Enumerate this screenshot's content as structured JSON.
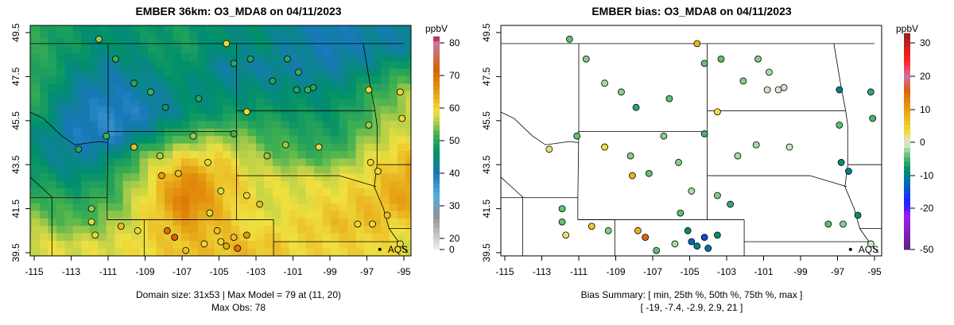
{
  "left": {
    "title": "EMBER 36km: O3_MDA8 on 04/11/2023",
    "footer1": "Domain size: 31x53 | Max Model = 79 at (11, 20)",
    "footer2": "Max Obs: 78",
    "units": "ppbV",
    "colorbar_ticks": [
      "80",
      "70",
      "60",
      "50",
      "40",
      "30",
      "20",
      "0"
    ]
  },
  "right": {
    "title": "EMBER bias: O3_MDA8 on 04/11/2023",
    "footer1": "Bias Summary: [ min, 25th %, 50th %, 75th %, max ]",
    "footer2": "[ -19,  -7.4,  -2.9,  2.9,  21 ]",
    "units": "ppbV",
    "colorbar_ticks": [
      "30",
      "20",
      "10",
      "0",
      "-10",
      "-20",
      "-50"
    ]
  },
  "marker_label": "AQS",
  "chart_data": {
    "type": "heatmap",
    "xlabel": "Longitude",
    "ylabel": "Latitude",
    "x_ticks": [
      "-115",
      "-113",
      "-111",
      "-109",
      "-107",
      "-105",
      "-103",
      "-101",
      "-99",
      "-97",
      "-95"
    ],
    "y_ticks": [
      "49.5",
      "47.5",
      "45.5",
      "43.5",
      "41.5",
      "39.5"
    ],
    "xlim": [
      -115.5,
      -94.7
    ],
    "ylim": [
      39.35,
      49.8
    ],
    "model_grid_lons": [
      -115,
      -113,
      -111,
      -109,
      -107,
      -105,
      -103,
      -101,
      -99,
      -97,
      -95
    ],
    "model_grid_lats": [
      49,
      48,
      47,
      46,
      45,
      44,
      43,
      42,
      41,
      40
    ],
    "model_grid": [
      [
        50,
        47,
        45,
        47,
        48,
        45,
        45,
        42,
        40,
        42,
        42
      ],
      [
        50,
        45,
        42,
        45,
        47,
        42,
        42,
        42,
        42,
        45,
        50
      ],
      [
        50,
        42,
        40,
        42,
        45,
        45,
        45,
        45,
        45,
        50,
        55
      ],
      [
        48,
        40,
        38,
        40,
        45,
        47,
        48,
        47,
        47,
        52,
        57
      ],
      [
        45,
        40,
        38,
        45,
        52,
        55,
        52,
        50,
        48,
        55,
        58
      ],
      [
        45,
        42,
        45,
        55,
        60,
        60,
        55,
        52,
        52,
        58,
        62
      ],
      [
        48,
        45,
        50,
        58,
        68,
        62,
        58,
        58,
        58,
        60,
        65
      ],
      [
        52,
        50,
        52,
        60,
        70,
        62,
        58,
        58,
        60,
        62,
        65
      ],
      [
        55,
        52,
        55,
        60,
        65,
        62,
        58,
        60,
        62,
        62,
        60
      ],
      [
        58,
        58,
        58,
        60,
        62,
        62,
        62,
        60,
        60,
        60,
        58
      ]
    ],
    "stations": [
      [
        -111.5,
        49.2,
        55,
        -4
      ],
      [
        -110.6,
        48.3,
        52,
        -3
      ],
      [
        -109.6,
        47.2,
        50,
        -2
      ],
      [
        -108.7,
        46.8,
        52,
        -3
      ],
      [
        -107.9,
        46.1,
        48,
        -6
      ],
      [
        -106.1,
        46.5,
        50,
        -4
      ],
      [
        -104.6,
        49.0,
        60,
        8
      ],
      [
        -104.2,
        48.1,
        50,
        -4
      ],
      [
        -103.3,
        48.3,
        50,
        -4
      ],
      [
        -102.1,
        47.3,
        50,
        -3
      ],
      [
        -101.3,
        48.3,
        50,
        -3
      ],
      [
        -100.7,
        47.7,
        52,
        -2
      ],
      [
        -100.8,
        46.9,
        50,
        -1
      ],
      [
        -100.2,
        46.9,
        52,
        0
      ],
      [
        -99.9,
        47.0,
        50,
        -1
      ],
      [
        -103.5,
        45.9,
        60,
        3
      ],
      [
        -112.6,
        44.2,
        50,
        2
      ],
      [
        -111.1,
        44.8,
        52,
        -4
      ],
      [
        -109.6,
        44.3,
        62,
        3
      ],
      [
        -108.2,
        43.9,
        56,
        -3
      ],
      [
        -106.4,
        44.8,
        55,
        -3
      ],
      [
        -104.2,
        44.9,
        52,
        -5
      ],
      [
        -102.4,
        43.9,
        55,
        -2
      ],
      [
        -101.4,
        44.4,
        55,
        -2
      ],
      [
        -99.6,
        44.3,
        58,
        -1
      ],
      [
        -96.9,
        46.9,
        60,
        -10
      ],
      [
        -96.9,
        45.3,
        55,
        -4
      ],
      [
        -96.8,
        43.6,
        60,
        -8
      ],
      [
        -96.4,
        43.2,
        58,
        -10
      ],
      [
        -95.2,
        46.8,
        60,
        -6
      ],
      [
        -95.1,
        45.6,
        60,
        -5
      ],
      [
        -108.1,
        43.0,
        65,
        8
      ],
      [
        -107.2,
        43.1,
        62,
        -4
      ],
      [
        -105.6,
        43.6,
        58,
        -3
      ],
      [
        -104.9,
        42.3,
        58,
        -2
      ],
      [
        -103.5,
        42.1,
        60,
        -3
      ],
      [
        -105.5,
        41.3,
        58,
        -4
      ],
      [
        -102.8,
        41.7,
        62,
        -6
      ],
      [
        -111.9,
        41.5,
        55,
        -4
      ],
      [
        -111.9,
        40.9,
        58,
        -4
      ],
      [
        -111.7,
        40.3,
        60,
        2
      ],
      [
        -110.3,
        40.7,
        62,
        6
      ],
      [
        -109.4,
        40.5,
        60,
        -3
      ],
      [
        -107.8,
        40.5,
        70,
        8
      ],
      [
        -107.4,
        40.2,
        72,
        15
      ],
      [
        -105.1,
        40.5,
        62,
        -8
      ],
      [
        -104.9,
        40.0,
        60,
        -13
      ],
      [
        -104.6,
        39.8,
        64,
        -10
      ],
      [
        -104.2,
        40.2,
        62,
        -15
      ],
      [
        -104.0,
        39.7,
        70,
        -12
      ],
      [
        -103.5,
        40.3,
        66,
        -8
      ],
      [
        -106.8,
        39.6,
        62,
        -4
      ],
      [
        -105.8,
        39.9,
        60,
        -2
      ],
      [
        -97.5,
        40.8,
        60,
        -4
      ],
      [
        -96.7,
        40.8,
        60,
        -3
      ],
      [
        -95.2,
        39.9,
        60,
        -1
      ],
      [
        -95.9,
        41.2,
        62,
        -8
      ]
    ],
    "aqs_marker": [
      -96.3,
      39.65
    ]
  },
  "colors": {
    "border": "#000000",
    "frame": "#000000"
  }
}
